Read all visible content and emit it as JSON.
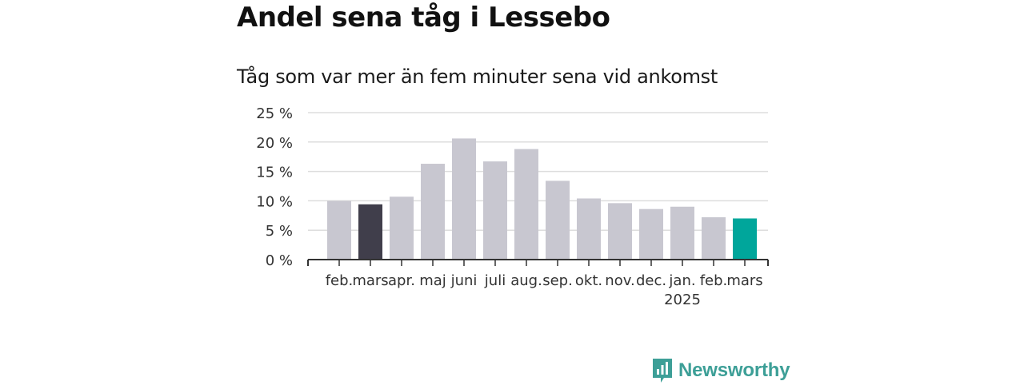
{
  "title": "Andel sena tåg i Lessebo",
  "subtitle": "Tåg som var mer än fem minuter sena vid ankomst",
  "brand": {
    "name": "Newsworthy",
    "icon": "newsworthy-logo-icon",
    "color": "#3d9f97"
  },
  "colors": {
    "default_bar": "#c8c7d0",
    "previous_year_bar": "#403e4b",
    "current_bar": "#00a69b",
    "grid": "#dddddd",
    "axis": "#333333"
  },
  "chart_data": {
    "type": "bar",
    "categories": [
      "feb.",
      "mars",
      "apr.",
      "maj",
      "juni",
      "juli",
      "aug.",
      "sep.",
      "okt.",
      "nov.",
      "dec.",
      "jan.",
      "feb.",
      "mars"
    ],
    "category_sublabels": [
      "",
      "",
      "",
      "",
      "",
      "",
      "",
      "",
      "",
      "",
      "",
      "2025",
      "",
      ""
    ],
    "values": [
      10.0,
      9.4,
      10.7,
      16.3,
      20.6,
      16.7,
      18.8,
      13.4,
      10.4,
      9.6,
      8.6,
      9.0,
      7.2,
      7.0
    ],
    "highlight": [
      "default",
      "previous_year",
      "default",
      "default",
      "default",
      "default",
      "default",
      "default",
      "default",
      "default",
      "default",
      "default",
      "default",
      "current"
    ],
    "unit": "%",
    "ylim": [
      0,
      25
    ],
    "yticks": [
      0,
      5,
      10,
      15,
      20,
      25
    ],
    "ytick_labels": [
      "0 %",
      "5 %",
      "10 %",
      "15 %",
      "20 %",
      "25 %"
    ],
    "grid": true,
    "xlabel": "",
    "ylabel": ""
  }
}
